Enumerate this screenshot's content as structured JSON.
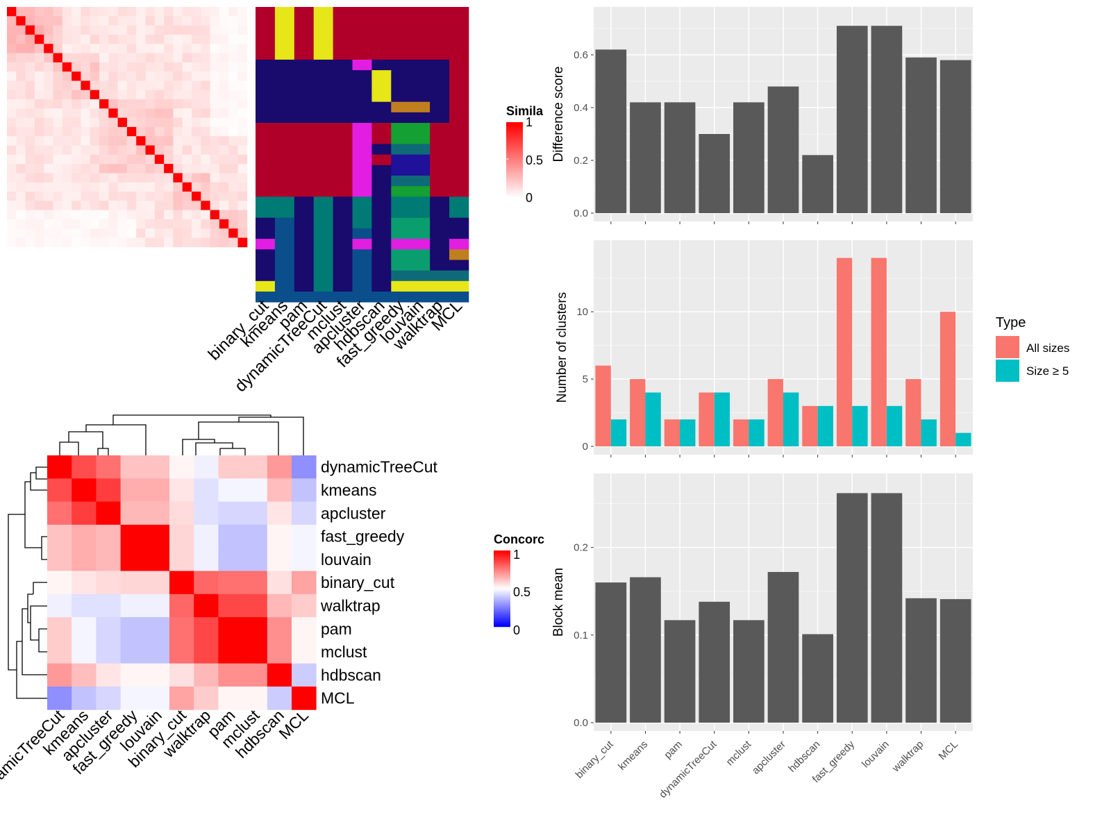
{
  "colors": {
    "bar_fill": "#595959",
    "panel_bg": "#ebebeb",
    "all_sizes": "#f8766d",
    "size5": "#00bfc4",
    "sim_high": "#ff0000",
    "conc_low": "#0000ff"
  },
  "similarity_legend": {
    "title": "Simila",
    "ticks": [
      "1",
      "0.5",
      "0"
    ]
  },
  "concordance_legend": {
    "title": "Concorc",
    "ticks": [
      "1",
      "0.5",
      "0"
    ]
  },
  "methods_top": [
    "binary_cut",
    "kmeans",
    "pam",
    "dynamicTreeCut",
    "mclust",
    "apcluster",
    "hdbscan",
    "fast_greedy",
    "louvain",
    "walktrap",
    "MCL"
  ],
  "methods_concordance": [
    "dynamicTreeCut",
    "kmeans",
    "apcluster",
    "fast_greedy",
    "louvain",
    "binary_cut",
    "walktrap",
    "pam",
    "mclust",
    "hdbscan",
    "MCL"
  ],
  "concordance_bottom_labels": [
    "amicTreeCut",
    "kmeans",
    "apcluster",
    "fast_greedy",
    "louvain",
    "binary_cut",
    "walktrap",
    "pam",
    "mclust",
    "hdbscan",
    "MCL"
  ],
  "bar_categories": [
    "binary_cut",
    "kmeans",
    "pam",
    "dynamicTreeCut",
    "mclust",
    "apcluster",
    "hdbscan",
    "fast_greedy",
    "louvain",
    "walktrap",
    "MCL"
  ],
  "chart_data": [
    {
      "type": "heatmap",
      "name": "similarity",
      "n": 26,
      "diagonal": 1,
      "range": [
        0,
        1
      ],
      "note_values": "off-diagonal similarities mostly between 0 and 0.25"
    },
    {
      "type": "heatmap",
      "name": "cluster-labels",
      "columns": [
        "binary_cut",
        "kmeans",
        "pam",
        "dynamicTreeCut",
        "mclust",
        "apcluster",
        "hdbscan",
        "fast_greedy",
        "louvain",
        "walktrap",
        "MCL"
      ]
    },
    {
      "type": "heatmap",
      "name": "concordance",
      "rows": [
        "dynamicTreeCut",
        "kmeans",
        "apcluster",
        "fast_greedy",
        "louvain",
        "binary_cut",
        "walktrap",
        "pam",
        "mclust",
        "hdbscan",
        "MCL"
      ],
      "columns": [
        "dynamicTreeCut",
        "kmeans",
        "apcluster",
        "fast_greedy",
        "louvain",
        "binary_cut",
        "walktrap",
        "pam",
        "mclust",
        "hdbscan",
        "MCL"
      ],
      "values": [
        [
          1.0,
          0.85,
          0.78,
          0.62,
          0.62,
          0.52,
          0.47,
          0.6,
          0.6,
          0.7,
          0.28
        ],
        [
          0.85,
          1.0,
          0.88,
          0.66,
          0.66,
          0.55,
          0.44,
          0.48,
          0.48,
          0.63,
          0.38
        ],
        [
          0.78,
          0.88,
          1.0,
          0.64,
          0.64,
          0.57,
          0.44,
          0.42,
          0.42,
          0.55,
          0.42
        ],
        [
          0.62,
          0.66,
          0.64,
          1.0,
          1.0,
          0.58,
          0.47,
          0.38,
          0.38,
          0.52,
          0.48
        ],
        [
          0.62,
          0.66,
          0.64,
          1.0,
          1.0,
          0.58,
          0.47,
          0.38,
          0.38,
          0.52,
          0.48
        ],
        [
          0.52,
          0.55,
          0.57,
          0.58,
          0.58,
          1.0,
          0.8,
          0.78,
          0.78,
          0.56,
          0.68
        ],
        [
          0.47,
          0.44,
          0.44,
          0.47,
          0.47,
          0.8,
          1.0,
          0.86,
          0.86,
          0.64,
          0.6
        ],
        [
          0.6,
          0.48,
          0.42,
          0.38,
          0.38,
          0.78,
          0.86,
          1.0,
          1.0,
          0.72,
          0.52
        ],
        [
          0.6,
          0.48,
          0.42,
          0.38,
          0.38,
          0.78,
          0.86,
          1.0,
          1.0,
          0.72,
          0.52
        ],
        [
          0.7,
          0.63,
          0.55,
          0.52,
          0.52,
          0.56,
          0.64,
          0.72,
          0.72,
          1.0,
          0.4
        ],
        [
          0.28,
          0.38,
          0.42,
          0.48,
          0.48,
          0.68,
          0.6,
          0.52,
          0.52,
          0.4,
          1.0
        ]
      ],
      "range": [
        0,
        1
      ]
    },
    {
      "type": "bar",
      "categories": [
        "binary_cut",
        "kmeans",
        "pam",
        "dynamicTreeCut",
        "mclust",
        "apcluster",
        "hdbscan",
        "fast_greedy",
        "louvain",
        "walktrap",
        "MCL"
      ],
      "values": [
        0.62,
        0.42,
        0.42,
        0.3,
        0.42,
        0.48,
        0.22,
        0.71,
        0.71,
        0.59,
        0.58
      ],
      "ylabel": "Difference score",
      "ylim": [
        0,
        0.75
      ],
      "yticks": [
        "0.0",
        "0.2",
        "0.4",
        "0.6"
      ],
      "grid": true
    },
    {
      "type": "bar",
      "categories": [
        "binary_cut",
        "kmeans",
        "pam",
        "dynamicTreeCut",
        "mclust",
        "apcluster",
        "hdbscan",
        "fast_greedy",
        "louvain",
        "walktrap",
        "MCL"
      ],
      "series": [
        {
          "name": "All sizes",
          "values": [
            6,
            5,
            2,
            4,
            2,
            5,
            3,
            14,
            14,
            5,
            10
          ]
        },
        {
          "name": "Size ≥ 5",
          "values": [
            2,
            4,
            2,
            4,
            2,
            4,
            3,
            3,
            3,
            2,
            1
          ]
        }
      ],
      "ylabel": "Number of clusters",
      "ylim": [
        0,
        14.7
      ],
      "yticks": [
        "0",
        "5",
        "10"
      ],
      "legend_title": "Type",
      "legend_position": "right",
      "grid": true
    },
    {
      "type": "bar",
      "categories": [
        "binary_cut",
        "kmeans",
        "pam",
        "dynamicTreeCut",
        "mclust",
        "apcluster",
        "hdbscan",
        "fast_greedy",
        "louvain",
        "walktrap",
        "MCL"
      ],
      "values": [
        0.16,
        0.166,
        0.117,
        0.138,
        0.117,
        0.172,
        0.101,
        0.262,
        0.262,
        0.142,
        0.141
      ],
      "ylabel": "Block mean",
      "ylim": [
        0,
        0.275
      ],
      "yticks": [
        "0.0",
        "0.1",
        "0.2"
      ],
      "grid": true
    }
  ]
}
